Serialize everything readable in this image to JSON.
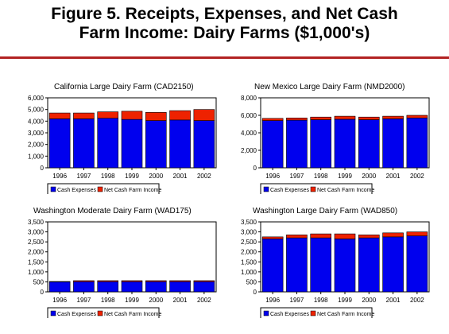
{
  "figure": {
    "title_line1": "Figure 5.  Receipts, Expenses, and Net Cash",
    "title_line2": "Farm Income:  Dairy Farms ($1,000's)"
  },
  "colors": {
    "expenses": "#0000ee",
    "income": "#ee2200",
    "rule": "#b22222"
  },
  "chart_data": [
    {
      "type": "bar",
      "stacked": true,
      "title": "California Large Dairy Farm (CAD2150)",
      "categories": [
        "1996",
        "1997",
        "1998",
        "1999",
        "2000",
        "2001",
        "2002"
      ],
      "series": [
        {
          "name": "Cash Expenses",
          "values": [
            4200,
            4200,
            4250,
            4150,
            4050,
            4100,
            4050
          ]
        },
        {
          "name": "Net Cash Farm Income",
          "values": [
            500,
            500,
            550,
            700,
            700,
            800,
            950
          ]
        }
      ],
      "ylim": [
        0,
        6000
      ],
      "yticks": [
        "0",
        "1,000",
        "2,000",
        "3,000",
        "4,000",
        "5,000",
        "6,000"
      ],
      "legend": "bottom",
      "grid": false
    },
    {
      "type": "bar",
      "stacked": true,
      "title": "New Mexico Large Dairy Farm (NMD2000)",
      "categories": [
        "1996",
        "1997",
        "1998",
        "1999",
        "2000",
        "2001",
        "2002"
      ],
      "series": [
        {
          "name": "Cash Expenses",
          "values": [
            5400,
            5450,
            5500,
            5550,
            5500,
            5600,
            5700
          ]
        },
        {
          "name": "Net Cash Farm Income",
          "values": [
            250,
            250,
            300,
            350,
            300,
            300,
            300
          ]
        }
      ],
      "ylim": [
        0,
        8000
      ],
      "yticks": [
        "0",
        "2,000",
        "4,000",
        "6,000",
        "8,000"
      ],
      "legend": "bottom",
      "grid": false
    },
    {
      "type": "bar",
      "stacked": true,
      "title": "Washington Moderate Dairy Farm (WAD175)",
      "categories": [
        "1996",
        "1997",
        "1998",
        "1999",
        "2000",
        "2001",
        "2002"
      ],
      "series": [
        {
          "name": "Cash Expenses",
          "values": [
            500,
            510,
            510,
            510,
            510,
            510,
            510
          ]
        },
        {
          "name": "Net Cash Farm Income",
          "values": [
            20,
            50,
            50,
            50,
            50,
            50,
            50
          ]
        }
      ],
      "ylim": [
        0,
        3500
      ],
      "yticks": [
        "0",
        "500",
        "1,000",
        "1,500",
        "2,000",
        "2,500",
        "3,000",
        "3,500"
      ],
      "legend": "bottom",
      "grid": false
    },
    {
      "type": "bar",
      "stacked": true,
      "title": "Washington Large Dairy Farm (WAD850)",
      "categories": [
        "1996",
        "1997",
        "1998",
        "1999",
        "2000",
        "2001",
        "2002"
      ],
      "series": [
        {
          "name": "Cash Expenses",
          "values": [
            2650,
            2700,
            2700,
            2650,
            2700,
            2750,
            2800
          ]
        },
        {
          "name": "Net Cash Farm Income",
          "values": [
            100,
            150,
            200,
            250,
            150,
            200,
            200
          ]
        }
      ],
      "ylim": [
        0,
        3500
      ],
      "yticks": [
        "0",
        "500",
        "1,000",
        "1,500",
        "2,000",
        "2,500",
        "3,000",
        "3,500"
      ],
      "legend": "bottom",
      "grid": false
    }
  ]
}
